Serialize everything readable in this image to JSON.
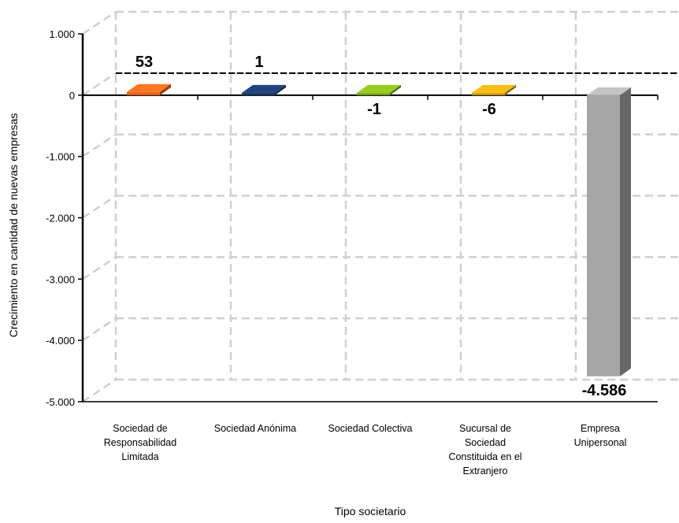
{
  "chart_data": {
    "type": "bar",
    "title": "",
    "xlabel": "Tipo societario",
    "ylabel": "Crecimiento en cantidad de nuevas empresas",
    "ylim": [
      -5000,
      1000
    ],
    "yticks": [
      1000,
      0,
      -1000,
      -2000,
      -3000,
      -4000,
      -5000
    ],
    "ytick_labels": [
      "1.000",
      "0",
      "-1.000",
      "-2.000",
      "-3.000",
      "-4.000",
      "-5.000"
    ],
    "grid": true,
    "legend": "none",
    "categories": [
      "Sociedad de Responsabilidad Limitada",
      "Sociedad Anónima",
      "Sociedad Colectiva",
      "Sucursal de Sociedad Constituida en el Extranjero",
      "Empresa Unipersonal"
    ],
    "category_lines": [
      [
        "Sociedad de",
        "Responsabilidad",
        "Limitada"
      ],
      [
        "Sociedad Anónima"
      ],
      [
        "Sociedad Colectiva"
      ],
      [
        "Sucursal de",
        "Sociedad",
        "Constituida en el",
        "Extranjero"
      ],
      [
        "Empresa",
        "Unipersonal"
      ]
    ],
    "values": [
      53,
      1,
      -1,
      -6,
      -4586
    ],
    "data_labels": [
      "53",
      "1",
      "-1",
      "-6",
      "-4.586"
    ],
    "colors": [
      "#e8641c",
      "#1b3a6b",
      "#7fae1b",
      "#d4a010",
      "#a6a6a6"
    ]
  }
}
